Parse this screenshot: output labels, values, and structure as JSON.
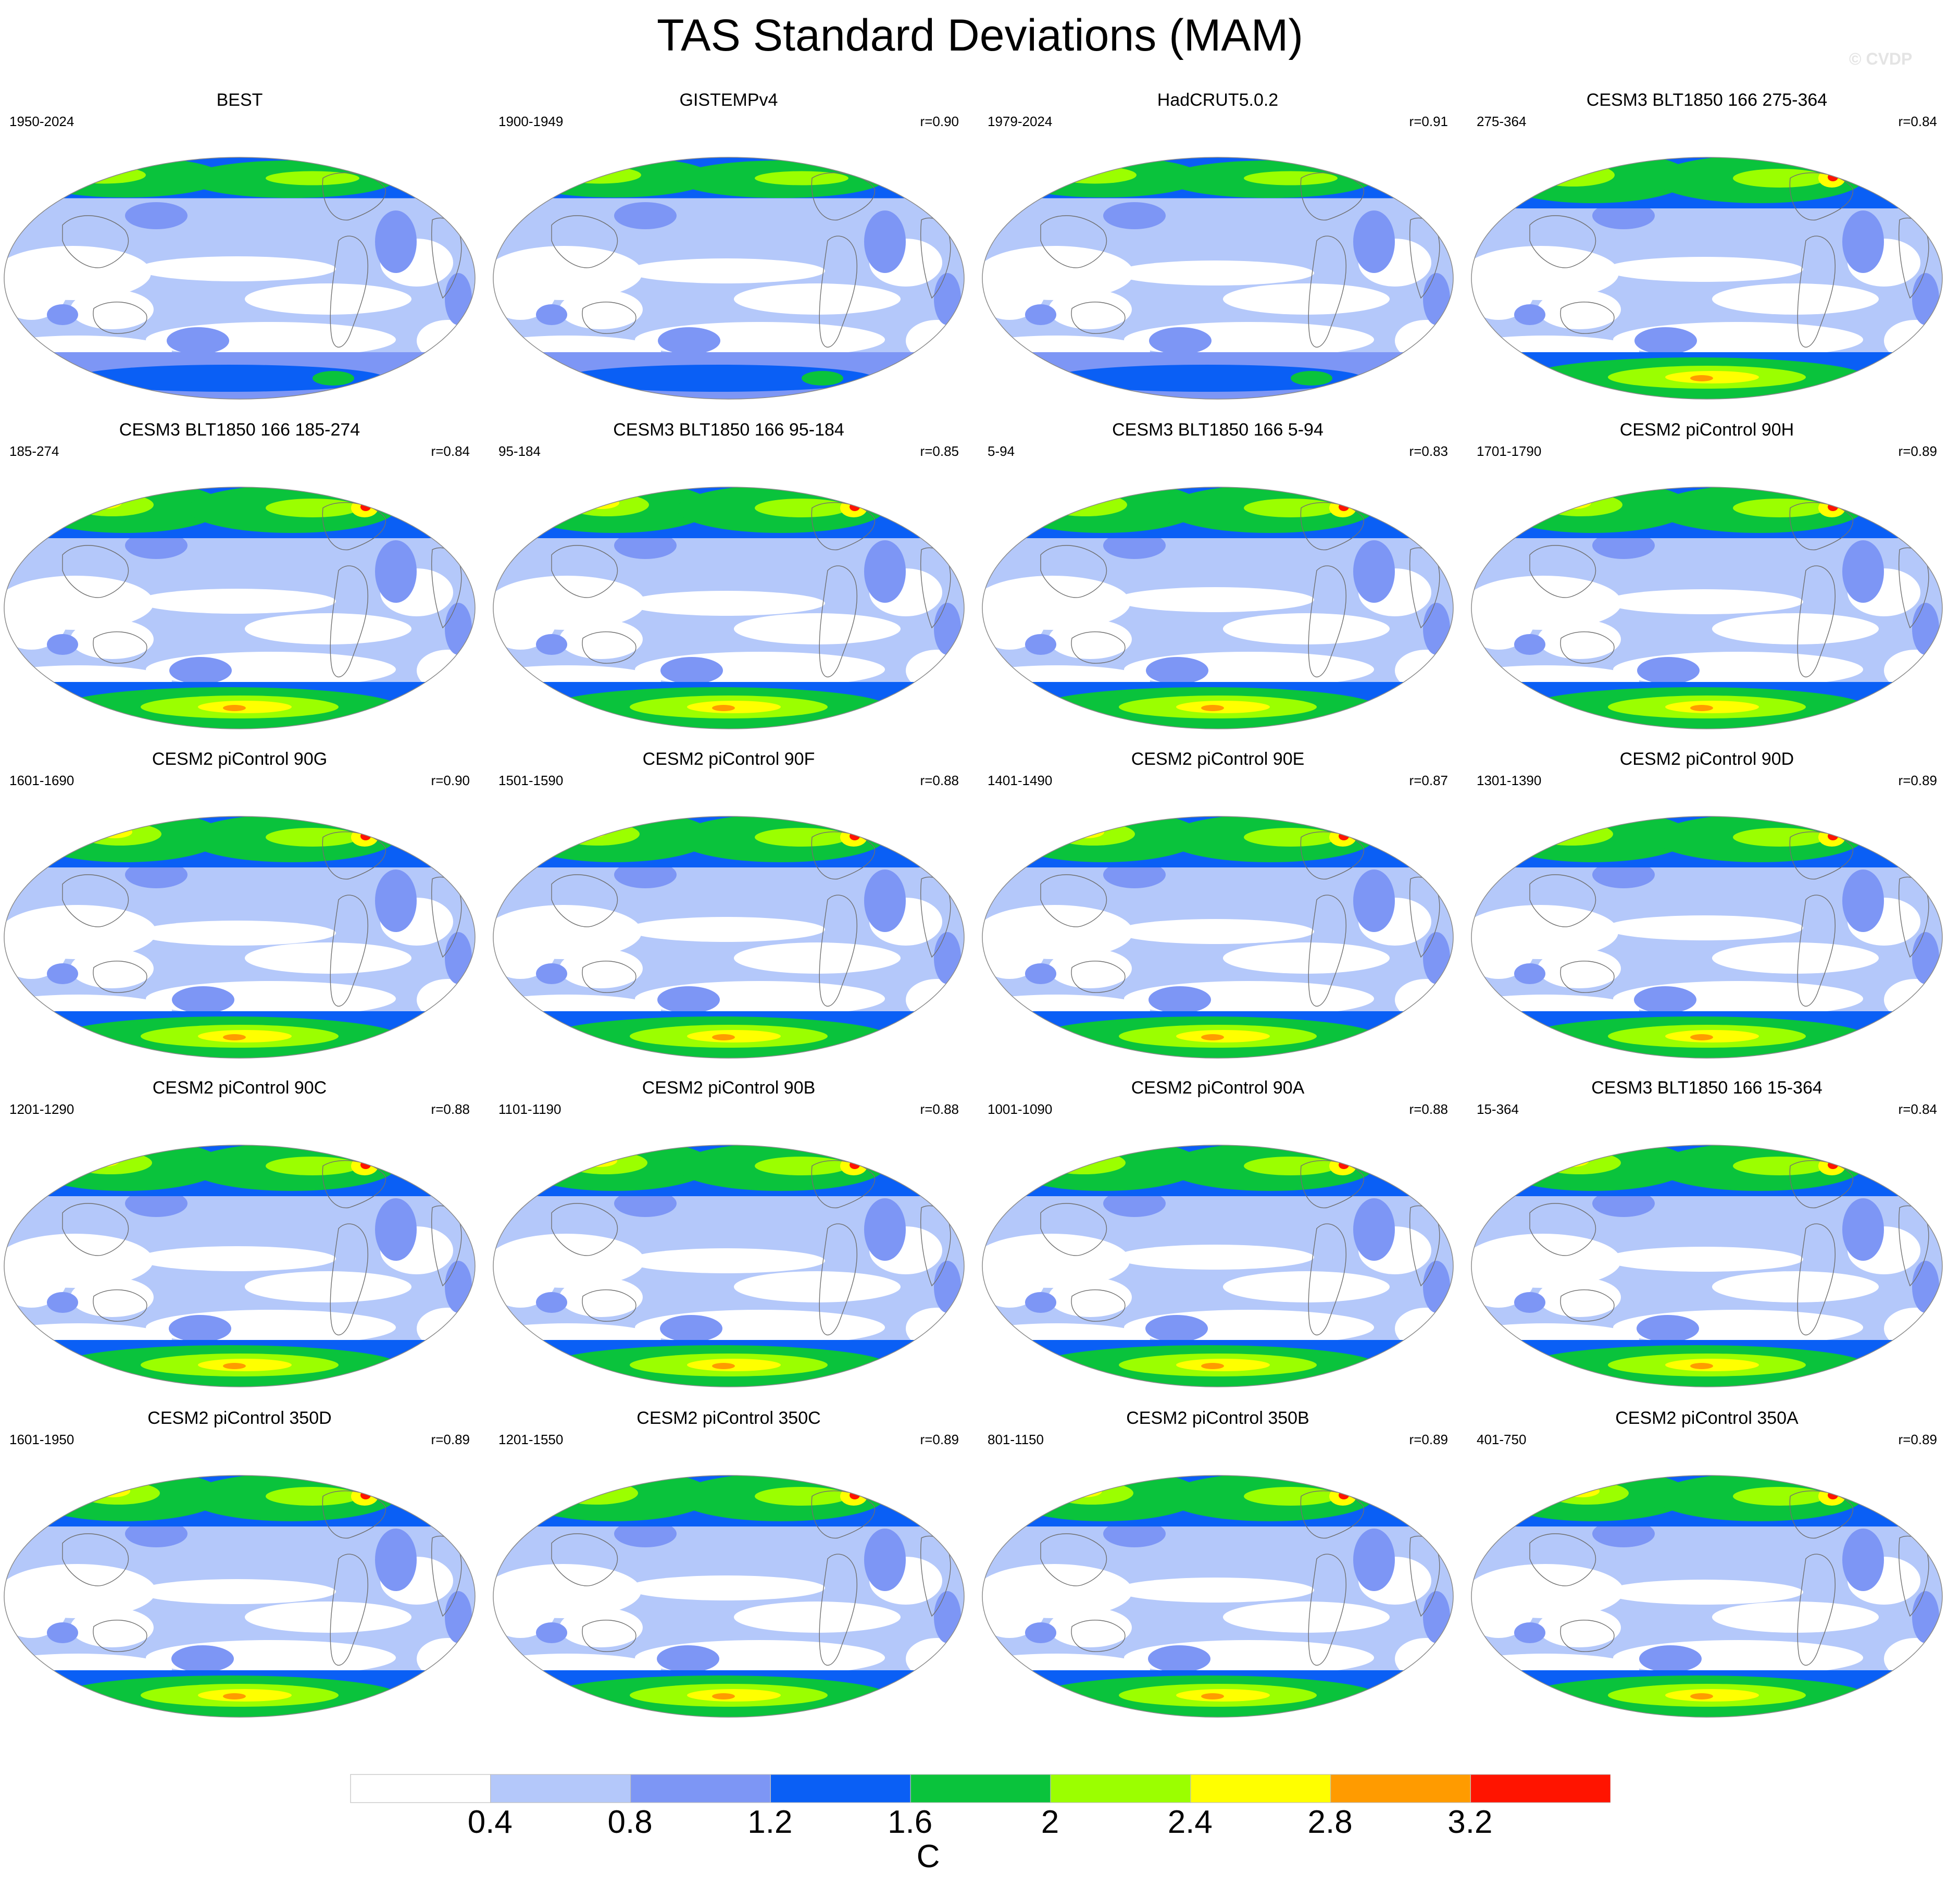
{
  "title": "TAS Standard Deviations (MAM)",
  "watermark": "© CVDP",
  "panels": [
    {
      "title": "BEST",
      "period": "1950-2024",
      "r": ""
    },
    {
      "title": "GISTEMPv4",
      "period": "1900-1949",
      "r": "r=0.90"
    },
    {
      "title": "HadCRUT5.0.2",
      "period": "1979-2024",
      "r": "r=0.91"
    },
    {
      "title": "CESM3 BLT1850 166 275-364",
      "period": "275-364",
      "r": "r=0.84"
    },
    {
      "title": "CESM3 BLT1850 166 185-274",
      "period": "185-274",
      "r": "r=0.84"
    },
    {
      "title": "CESM3 BLT1850 166 95-184",
      "period": "95-184",
      "r": "r=0.85"
    },
    {
      "title": "CESM3 BLT1850 166 5-94",
      "period": "5-94",
      "r": "r=0.83"
    },
    {
      "title": "CESM2 piControl 90H",
      "period": "1701-1790",
      "r": "r=0.89"
    },
    {
      "title": "CESM2 piControl 90G",
      "period": "1601-1690",
      "r": "r=0.90"
    },
    {
      "title": "CESM2 piControl 90F",
      "period": "1501-1590",
      "r": "r=0.88"
    },
    {
      "title": "CESM2 piControl 90E",
      "period": "1401-1490",
      "r": "r=0.87"
    },
    {
      "title": "CESM2 piControl 90D",
      "period": "1301-1390",
      "r": "r=0.89"
    },
    {
      "title": "CESM2 piControl 90C",
      "period": "1201-1290",
      "r": "r=0.88"
    },
    {
      "title": "CESM2 piControl 90B",
      "period": "1101-1190",
      "r": "r=0.88"
    },
    {
      "title": "CESM2 piControl 90A",
      "period": "1001-1090",
      "r": "r=0.88"
    },
    {
      "title": "CESM3 BLT1850 166 15-364",
      "period": "15-364",
      "r": "r=0.84"
    },
    {
      "title": "CESM2 piControl 350D",
      "period": "1601-1950",
      "r": "r=0.89"
    },
    {
      "title": "CESM2 piControl 350C",
      "period": "1201-1550",
      "r": "r=0.89"
    },
    {
      "title": "CESM2 piControl 350B",
      "period": "801-1150",
      "r": "r=0.89"
    },
    {
      "title": "CESM2 piControl 350A",
      "period": "401-750",
      "r": "r=0.89"
    }
  ],
  "colorbar": {
    "units": "C",
    "labels": [
      "0.4",
      "0.8",
      "1.2",
      "1.6",
      "2",
      "2.4",
      "2.8",
      "3.2"
    ],
    "colors": [
      "#ffffff",
      "#b4c8fa",
      "#7d96f5",
      "#0a5ff5",
      "#0ac33c",
      "#9bff00",
      "#ffff00",
      "#ff9b00",
      "#ff1400"
    ]
  }
}
